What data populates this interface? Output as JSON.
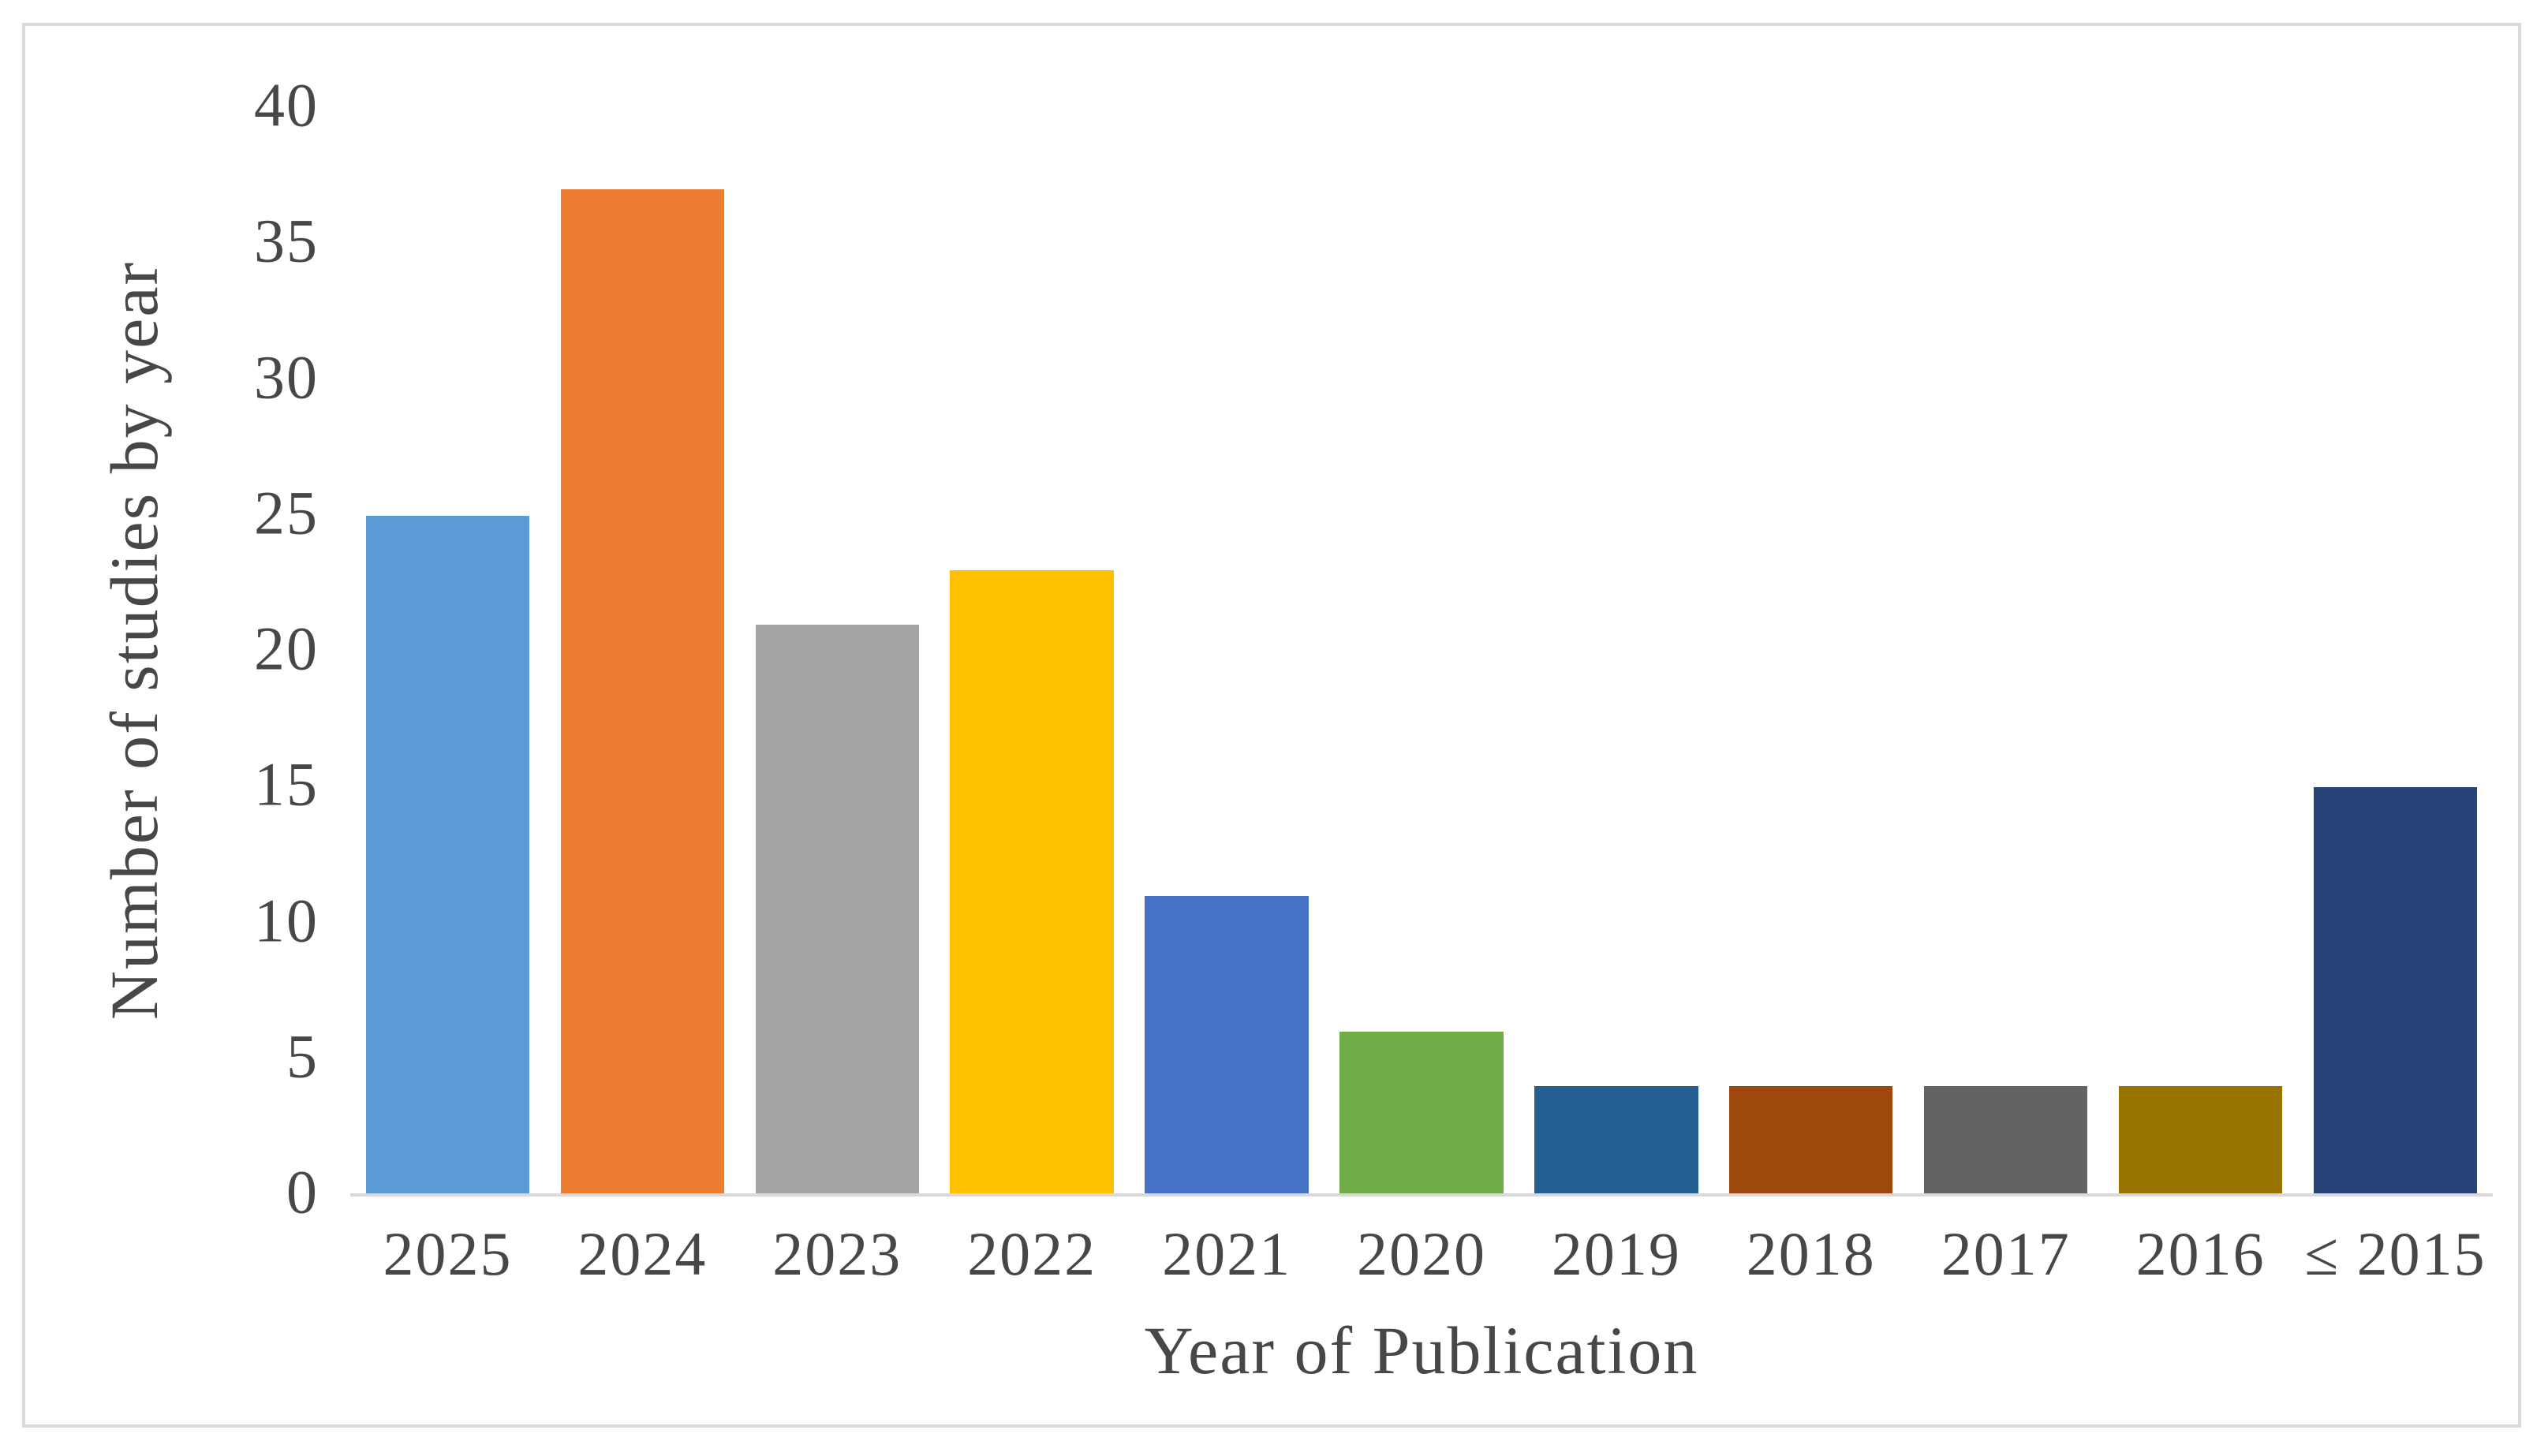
{
  "chart_data": {
    "type": "bar",
    "title": "",
    "xlabel": "Year of Publication",
    "ylabel": "Number of studies by year",
    "categories": [
      "2025",
      "2024",
      "2023",
      "2022",
      "2021",
      "2020",
      "2019",
      "2018",
      "2017",
      "2016",
      "≤ 2015"
    ],
    "values": [
      25,
      37,
      21,
      23,
      11,
      6,
      4,
      4,
      4,
      4,
      15
    ],
    "bar_colors": [
      "#5B9BD5",
      "#ED7D31",
      "#A5A5A5",
      "#FFC000",
      "#4472C4",
      "#70AD47",
      "#255E91",
      "#9E480E",
      "#636363",
      "#997300",
      "#264478"
    ],
    "ylim": [
      0,
      40
    ],
    "yticks": [
      0,
      5,
      10,
      15,
      20,
      25,
      30,
      35,
      40
    ],
    "grid": false,
    "legend": false,
    "colors": {
      "axis_line": "#d9d9d9",
      "frame_border": "#d9d9d9",
      "text": "#474747",
      "background": "#ffffff"
    }
  }
}
